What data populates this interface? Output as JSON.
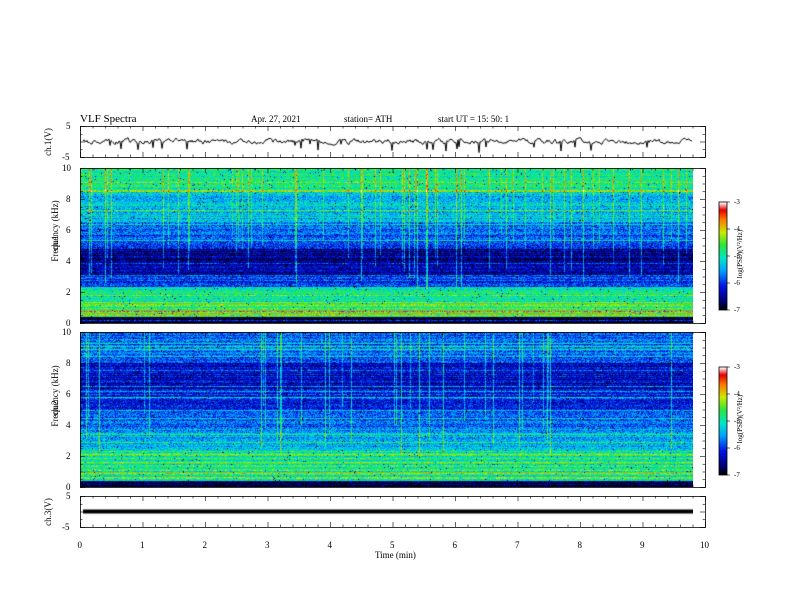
{
  "header": {
    "title": "VLF  Spectra",
    "date": "Apr. 27, 2021",
    "station": "station= ATH",
    "start": "start  UT  =    15: 50: 1"
  },
  "panels": {
    "ch1_wave": {
      "ylabel": "ch.1(V)",
      "yticks": [
        "5",
        "-5"
      ]
    },
    "ch1_spec": {
      "ylabel": "ch.1\nFrequency (kHz)",
      "ylabel_a": "ch.1",
      "ylabel_b": "Frequency  (kHz)",
      "yticks": [
        "10",
        "8",
        "6",
        "4",
        "2",
        "0"
      ]
    },
    "ch2_spec": {
      "ylabel_a": "ch.2",
      "ylabel_b": "Frequency  (kHz)",
      "yticks": [
        "10",
        "8",
        "6",
        "4",
        "2",
        "0"
      ]
    },
    "ch3_wave": {
      "ylabel": "ch.3(V)",
      "yticks": [
        "5",
        "-5"
      ]
    }
  },
  "colorbar": {
    "label": "log(PSD)(V²/Hz)",
    "ticks": [
      "-3",
      "-4",
      "-5",
      "-6",
      "-7"
    ],
    "range": [
      -7,
      -3
    ]
  },
  "chart_data": {
    "type": "heatmap",
    "title": "VLF  Spectra",
    "xlabel": "Time  (min)",
    "xticks": [
      "0",
      "1",
      "2",
      "3",
      "4",
      "5",
      "6",
      "7",
      "8",
      "9",
      "10"
    ],
    "xlim": [
      0,
      10
    ],
    "data_end_min": 9.8,
    "series": [
      {
        "name": "ch.1(V)",
        "kind": "waveform",
        "ylim": [
          -5,
          5
        ],
        "level_V": 0
      },
      {
        "name": "ch.1",
        "kind": "spectrogram",
        "ylim_kHz": [
          0,
          10
        ],
        "colorbar_range": [
          -7,
          -3
        ]
      },
      {
        "name": "ch.2",
        "kind": "spectrogram",
        "ylim_kHz": [
          0,
          10
        ],
        "colorbar_range": [
          -7,
          -3
        ]
      },
      {
        "name": "ch.3(V)",
        "kind": "waveform",
        "ylim": [
          -5,
          5
        ],
        "level_V": 0
      }
    ]
  }
}
